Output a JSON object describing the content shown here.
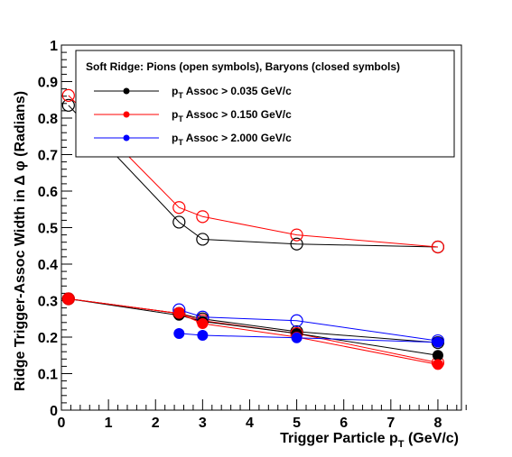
{
  "chart_data": {
    "type": "scatter",
    "title": "",
    "xlabel": "Trigger Particle p",
    "xlabel_sub": "T",
    "xlabel_suffix": " (GeV/c)",
    "ylabel": "Ridge Trigger-Assoc Width in Δ φ (Radians)",
    "xlim": [
      0,
      8.5
    ],
    "ylim": [
      0,
      1
    ],
    "x_ticks": [
      0,
      1,
      2,
      3,
      4,
      5,
      6,
      7,
      8
    ],
    "y_ticks": [
      0,
      0.1,
      0.2,
      0.3,
      0.4,
      0.5,
      0.6,
      0.7,
      0.8,
      0.9,
      1
    ],
    "x_tick_labels": [
      "0",
      "1",
      "2",
      "3",
      "4",
      "5",
      "6",
      "7",
      "8"
    ],
    "y_tick_labels": [
      "0",
      "0.1",
      "0.2",
      "0.3",
      "0.4",
      "0.5",
      "0.6",
      "0.7",
      "0.8",
      "0.9",
      "1"
    ],
    "grid": false,
    "legend": {
      "title": "Soft Ridge:  Pions (open symbols), Baryons (closed symbols)",
      "placement": "top-right",
      "entries": [
        {
          "prefix": "p",
          "sub": "T",
          "text": " Assoc > 0.035 GeV/c",
          "color": "#000000"
        },
        {
          "prefix": "p",
          "sub": "T",
          "text": " Assoc > 0.150 GeV/c",
          "color": "#ff0000"
        },
        {
          "prefix": "p",
          "sub": "T",
          "text": " Assoc > 2.000 GeV/c",
          "color": "#0000ff"
        }
      ]
    },
    "series": [
      {
        "legend_index": 0,
        "color": "#000000",
        "marker": "open",
        "x": [
          0.15,
          2.5,
          3,
          5,
          8
        ],
        "y": [
          0.835,
          0.515,
          0.468,
          0.455,
          0.447
        ]
      },
      {
        "legend_index": 1,
        "color": "#ff0000",
        "marker": "open",
        "x": [
          0.15,
          2.5,
          3,
          5,
          8
        ],
        "y": [
          0.862,
          0.555,
          0.53,
          0.48,
          0.447
        ]
      },
      {
        "legend_index": 0,
        "color": "#000000",
        "marker": "open",
        "x": [
          0.15,
          2.5,
          3,
          5,
          8
        ],
        "y": [
          0.305,
          0.265,
          0.25,
          0.215,
          0.185
        ]
      },
      {
        "legend_index": 1,
        "color": "#ff0000",
        "marker": "open",
        "x": [
          0.15,
          2.5,
          3,
          5,
          8
        ],
        "y": [
          0.305,
          0.265,
          0.245,
          0.21,
          0.13
        ]
      },
      {
        "legend_index": 2,
        "color": "#0000ff",
        "marker": "open",
        "x": [
          2.5,
          3,
          5,
          8
        ],
        "y": [
          0.275,
          0.255,
          0.245,
          0.19
        ]
      },
      {
        "legend_index": 0,
        "color": "#000000",
        "marker": "closed",
        "x": [
          0.15,
          2.5,
          3,
          5,
          8
        ],
        "y": [
          0.305,
          0.26,
          0.243,
          0.21,
          0.15
        ]
      },
      {
        "legend_index": 1,
        "color": "#ff0000",
        "marker": "closed",
        "x": [
          0.15,
          2.5,
          3,
          5,
          8
        ],
        "y": [
          0.305,
          0.265,
          0.237,
          0.2,
          0.125
        ]
      },
      {
        "legend_index": 2,
        "color": "#0000ff",
        "marker": "closed",
        "x": [
          2.5,
          3,
          5,
          8
        ],
        "y": [
          0.21,
          0.205,
          0.198,
          0.186
        ]
      }
    ]
  }
}
